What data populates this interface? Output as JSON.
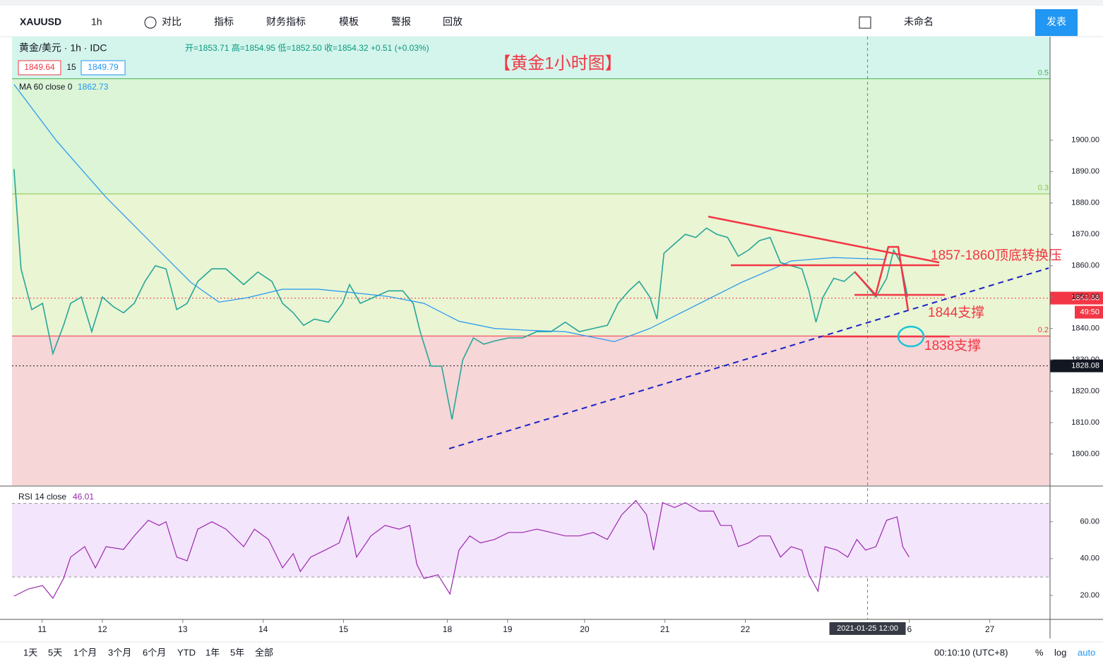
{
  "toolbar": {
    "symbol": "XAUUSD",
    "interval": "1h",
    "compare": "对比",
    "indicators": "指标",
    "financials": "财务指标",
    "templates": "模板",
    "alerts": "警报",
    "replay": "回放",
    "layout_name": "未命名",
    "publish": "发表"
  },
  "legend": {
    "title": "黄金/美元 · 1h · IDC",
    "ohlc": "开=1853.71  高=1854.95  低=1852.50  收=1854.32  +0.51 (+0.03%)",
    "bid": "1849.64",
    "spread": "15",
    "ask": "1849.79",
    "ma_label": "MA 60 close 0",
    "ma_value": "1862.73",
    "rsi_label": "RSI 14 close",
    "rsi_value": "46.01"
  },
  "bottom_bar": {
    "ranges": [
      "1天",
      "5天",
      "1个月",
      "3个月",
      "6个月",
      "YTD",
      "1年",
      "5年",
      "全部"
    ],
    "time": "00:10:10 (UTC+8)",
    "percent": "%",
    "log": "log",
    "auto": "auto"
  },
  "chart_data": [
    {
      "type": "line",
      "title": "【黄金1小时图】",
      "xlim": [
        0,
        310
      ],
      "ylim": [
        1790,
        1933
      ],
      "yticks": [
        {
          "value": 1800,
          "label": "1800.00"
        },
        {
          "value": 1810,
          "label": "1810.00"
        },
        {
          "value": 1820,
          "label": "1820.00"
        },
        {
          "value": 1830,
          "label": "1830.00"
        },
        {
          "value": 1840,
          "label": "1840.00"
        },
        {
          "value": 1850,
          "label": "1850.00"
        },
        {
          "value": 1860,
          "label": "1860.00"
        },
        {
          "value": 1870,
          "label": "1870.00"
        },
        {
          "value": 1880,
          "label": "1880.00"
        },
        {
          "value": 1890,
          "label": "1890.00"
        },
        {
          "value": 1900,
          "label": "1900.00"
        }
      ],
      "xticks": [
        {
          "value": 9,
          "label": "11"
        },
        {
          "value": 27,
          "label": "12"
        },
        {
          "value": 51,
          "label": "13"
        },
        {
          "value": 75,
          "label": "14"
        },
        {
          "value": 99,
          "label": "15"
        },
        {
          "value": 130,
          "label": "18"
        },
        {
          "value": 148,
          "label": "19"
        },
        {
          "value": 171,
          "label": "20"
        },
        {
          "value": 195,
          "label": "21"
        },
        {
          "value": 219,
          "label": "22"
        },
        {
          "value": 268,
          "label": "6"
        },
        {
          "value": 292,
          "label": "27"
        }
      ],
      "crosshair": {
        "value": 255.5,
        "label": "2021-01-25   12:00"
      },
      "levels": [
        {
          "value": 1919.6,
          "label": "0.5",
          "color": "#4caf50"
        },
        {
          "value": 1882.9,
          "label": "0.3",
          "color": "#8bc34a"
        },
        {
          "value": 1837.6,
          "label": "0.2",
          "color": "#f23645"
        }
      ],
      "price_labels": [
        {
          "value": 1849.68,
          "label": "1849.68",
          "color": "#f23645"
        },
        {
          "value": 1828.08,
          "label": "1828.08",
          "color": "#131722"
        }
      ],
      "countdown": "49:50",
      "annotations": [
        "1857-1860顶底转换压",
        "1844支撑",
        "1838支撑"
      ],
      "series": [
        {
          "name": "收",
          "color": "#26a69a",
          "x": [
            0.6,
            2.7,
            5.9,
            9.1,
            12.2,
            15.4,
            17.5,
            20.7,
            23.8,
            27.0,
            30.2,
            33.3,
            36.5,
            39.7,
            42.8,
            46.0,
            49.2,
            52.3,
            55.5,
            59.7,
            63.9,
            69.2,
            73.4,
            77.6,
            80.8,
            84.0,
            87.1,
            90.3,
            94.5,
            98.7,
            100.8,
            104.0,
            108.2,
            112.4,
            116.7,
            119.8,
            121.9,
            125.1,
            128.3,
            131.4,
            134.6,
            137.8,
            140.9,
            144.1,
            148.3,
            152.5,
            156.7,
            161.0,
            165.2,
            169.4,
            173.6,
            177.8,
            181.0,
            184.2,
            187.3,
            190.5,
            192.6,
            194.7,
            197.9,
            201.1,
            204.2,
            207.4,
            210.5,
            213.7,
            216.9,
            220.0,
            223.2,
            226.4,
            229.5,
            232.7,
            235.9,
            238.0,
            240.1,
            242.2,
            245.4,
            248.5,
            251.7,
            254.9,
            258.0,
            261.2,
            263.3,
            265.4,
            267.5
          ],
          "values": [
            1890.8,
            1859,
            1846,
            1848,
            1832,
            1841,
            1848,
            1850,
            1839,
            1850,
            1847,
            1845,
            1848,
            1855,
            1860,
            1859,
            1846,
            1848,
            1855,
            1859,
            1859,
            1854,
            1858,
            1855,
            1848,
            1845,
            1841,
            1843,
            1842,
            1848,
            1854,
            1848,
            1850,
            1852,
            1852,
            1848,
            1839,
            1828,
            1828,
            1811,
            1830,
            1837,
            1835,
            1836,
            1837,
            1837,
            1839,
            1839,
            1842,
            1839,
            1840,
            1841,
            1848,
            1852,
            1855,
            1850,
            1843,
            1864,
            1867,
            1870,
            1869,
            1872,
            1870,
            1869,
            1863,
            1865,
            1868,
            1869,
            1861,
            1860,
            1859,
            1852,
            1842,
            1850,
            1856,
            1855,
            1858,
            1854,
            1850,
            1856,
            1865,
            1861,
            1850
          ]
        },
        {
          "name": "MA 60",
          "color": "#2196f3",
          "x": [
            0.6,
            13.3,
            28.1,
            42.8,
            53.4,
            61.8,
            70.3,
            80.8,
            91.4,
            101.9,
            112.4,
            123.0,
            133.5,
            144.1,
            154.6,
            165.2,
            179.9,
            190.5,
            201.1,
            217.9,
            232.7,
            245.4,
            261.2
          ],
          "values": [
            1917.8,
            1899.8,
            1881.8,
            1866,
            1854.7,
            1848.4,
            1849.8,
            1852.5,
            1852.5,
            1851.4,
            1850.2,
            1848,
            1842.3,
            1840,
            1839.4,
            1839,
            1835.8,
            1840,
            1845.7,
            1854.7,
            1861.5,
            1862.6,
            1862
          ]
        }
      ]
    },
    {
      "type": "line",
      "xlim": [
        0,
        310
      ],
      "ylim": [
        7,
        79
      ],
      "yticks": [
        {
          "value": 20,
          "label": "20.00"
        },
        {
          "value": 40,
          "label": "40.00"
        },
        {
          "value": 60,
          "label": "60.00"
        }
      ],
      "bands": [
        70,
        30
      ],
      "series": [
        {
          "name": "RSI",
          "color": "#9c27b0",
          "x": [
            0.6,
            4.9,
            9.1,
            12.2,
            15.4,
            17.5,
            21.7,
            24.9,
            28.1,
            33.3,
            36.5,
            40.7,
            43.9,
            46.0,
            49.2,
            52.3,
            55.5,
            59.7,
            63.9,
            69.2,
            72.4,
            76.6,
            80.8,
            84.0,
            86.1,
            89.2,
            93.5,
            97.7,
            100.4,
            102.9,
            107.2,
            111.4,
            115.6,
            118.8,
            120.9,
            123.0,
            127.2,
            130.8,
            133.5,
            136.7,
            139.9,
            144.1,
            148.3,
            152.5,
            156.7,
            161.0,
            165.2,
            169.4,
            173.6,
            177.8,
            182.1,
            186.3,
            189.5,
            191.6,
            194.3,
            197.9,
            201.1,
            205.3,
            209.5,
            211.6,
            214.8,
            216.9,
            220.0,
            223.2,
            226.4,
            229.5,
            232.7,
            235.9,
            238.0,
            240.7,
            242.8,
            246.4,
            249.6,
            252.3,
            254.9,
            258.0,
            261.2,
            264.3,
            266.0,
            267.9
          ],
          "values": [
            19.6,
            23.5,
            25.4,
            18.5,
            29.2,
            40.8,
            46.5,
            35,
            46.5,
            45,
            52.3,
            60.8,
            58,
            60,
            40.8,
            38.8,
            56,
            60,
            56,
            46.5,
            56,
            50.4,
            35,
            42.7,
            33,
            40.8,
            44.6,
            48.5,
            62.7,
            40.8,
            52.3,
            58,
            56,
            58,
            36.9,
            29.2,
            31.2,
            20.8,
            44.6,
            52.3,
            48.5,
            50.4,
            54.2,
            54.2,
            56,
            54.2,
            52.3,
            52.3,
            54.2,
            50.4,
            63.8,
            71.5,
            63.8,
            44.6,
            70.4,
            67.7,
            70.4,
            65.8,
            65.8,
            58,
            58,
            46.5,
            48.5,
            52.3,
            52.3,
            40.8,
            46.5,
            44.6,
            31.2,
            22.3,
            46.5,
            44.6,
            40.8,
            50.4,
            44.6,
            46.5,
            60.8,
            62.7,
            46.5,
            40.8
          ]
        }
      ]
    }
  ]
}
